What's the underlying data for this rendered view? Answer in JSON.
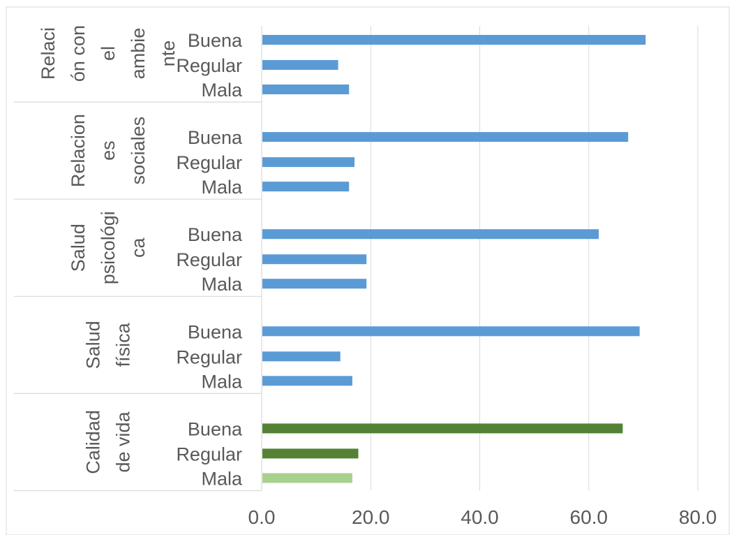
{
  "chart_data": {
    "type": "bar",
    "orientation": "horizontal",
    "title": "",
    "xlabel": "",
    "ylabel": "",
    "xlim": [
      0,
      80
    ],
    "x_ticks": [
      "0.0",
      "20.0",
      "40.0",
      "60.0",
      "80.0"
    ],
    "grid": true,
    "legend": "none",
    "colors": {
      "default": "#5B9BD5",
      "calidad_buena_regular": "#548235",
      "calidad_mala": "#A9D18E",
      "grid": "#D9D9D9",
      "text": "#595959",
      "frame": "#D9D9D9"
    },
    "groups": [
      {
        "label": "Relación con el ambiente",
        "label_lines": [
          "Relaci",
          "ón con",
          "el",
          "ambie",
          "nte"
        ],
        "categories": [
          "Buena",
          "Regular",
          "Mala"
        ],
        "values": [
          70.3,
          13.9,
          15.9
        ],
        "colors": [
          "#5B9BD5",
          "#5B9BD5",
          "#5B9BD5"
        ]
      },
      {
        "label": "Relaciones sociales",
        "label_lines": [
          "Relacion",
          "es",
          "sociales"
        ],
        "categories": [
          "Buena",
          "Regular",
          "Mala"
        ],
        "values": [
          67.1,
          16.9,
          15.9
        ],
        "colors": [
          "#5B9BD5",
          "#5B9BD5",
          "#5B9BD5"
        ]
      },
      {
        "label": "Salud psicológica",
        "label_lines": [
          "Salud",
          "psicológi",
          "ca"
        ],
        "categories": [
          "Buena",
          "Regular",
          "Mala"
        ],
        "values": [
          61.7,
          19.1,
          19.1
        ],
        "colors": [
          "#5B9BD5",
          "#5B9BD5",
          "#5B9BD5"
        ]
      },
      {
        "label": "Salud física",
        "label_lines": [
          "Salud",
          "física"
        ],
        "categories": [
          "Buena",
          "Regular",
          "Mala"
        ],
        "values": [
          69.2,
          14.3,
          16.5
        ],
        "colors": [
          "#5B9BD5",
          "#5B9BD5",
          "#5B9BD5"
        ]
      },
      {
        "label": "Calidad de vida",
        "label_lines": [
          "Calidad",
          "de vida"
        ],
        "categories": [
          "Buena",
          "Regular",
          "Mala"
        ],
        "values": [
          66.1,
          17.6,
          16.5
        ],
        "colors": [
          "#548235",
          "#548235",
          "#A9D18E"
        ]
      }
    ]
  }
}
